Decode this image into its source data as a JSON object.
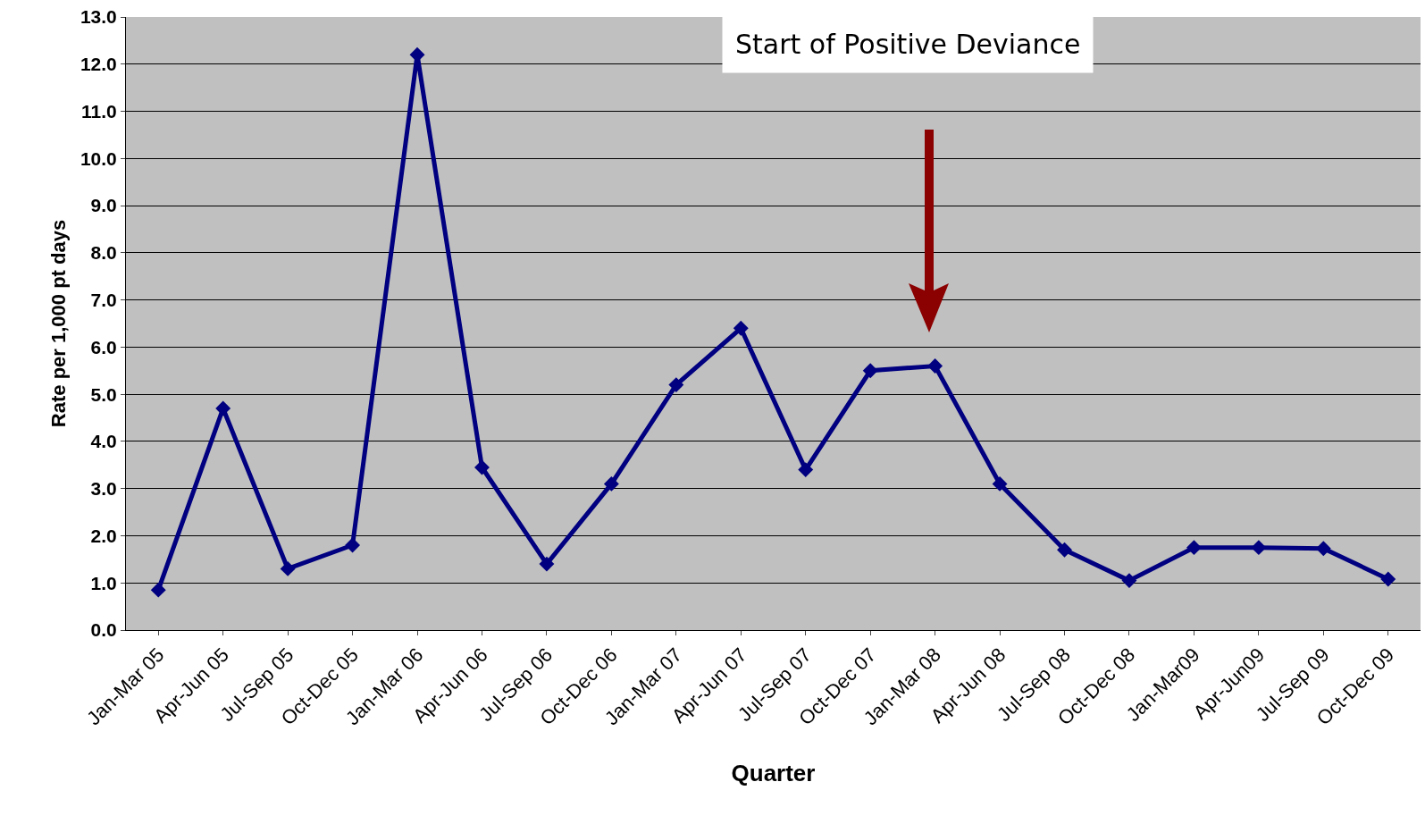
{
  "chart_data": {
    "type": "line",
    "xlabel": "Quarter",
    "ylabel": "Rate per 1,000 pt days",
    "categories": [
      "Jan-Mar 05",
      "Apr-Jun 05",
      "Jul-Sep 05",
      "Oct-Dec 05",
      "Jan-Mar 06",
      "Apr-Jun 06",
      "Jul-Sep 06",
      "Oct-Dec 06",
      "Jan-Mar 07",
      "Apr-Jun 07",
      "Jul-Sep 07",
      "Oct-Dec 07",
      "Jan-Mar 08",
      "Apr-Jun 08",
      "Jul-Sep 08",
      "Oct-Dec 08",
      "Jan-Mar09",
      "Apr-Jun09",
      "Jul-Sep 09",
      "Oct-Dec 09"
    ],
    "series": [
      {
        "color": "#000080",
        "values": [
          0.85,
          4.7,
          1.3,
          1.8,
          12.2,
          3.45,
          1.4,
          3.1,
          5.2,
          6.4,
          3.4,
          5.5,
          5.6,
          3.1,
          1.7,
          1.05,
          1.75,
          1.75,
          1.73,
          1.08
        ]
      }
    ],
    "ylim": [
      0,
      13
    ],
    "yticks": [
      {
        "value": 0,
        "label": "0.0"
      },
      {
        "value": 1,
        "label": "1.0"
      },
      {
        "value": 2,
        "label": "2.0"
      },
      {
        "value": 3,
        "label": "3.0"
      },
      {
        "value": 4,
        "label": "4.0"
      },
      {
        "value": 5,
        "label": "5.0"
      },
      {
        "value": 6,
        "label": "6.0"
      },
      {
        "value": 7,
        "label": "7.0"
      },
      {
        "value": 8,
        "label": "8.0"
      },
      {
        "value": 9,
        "label": "9.0"
      },
      {
        "value": 10,
        "label": "10.0"
      },
      {
        "value": 11,
        "label": "11.0"
      },
      {
        "value": 12,
        "label": "12.0"
      },
      {
        "value": 13,
        "label": "13.0"
      }
    ],
    "grid": "y",
    "marker": "diamond",
    "line_style": "solid",
    "annotations": [
      "Start of Positive Deviance"
    ]
  }
}
